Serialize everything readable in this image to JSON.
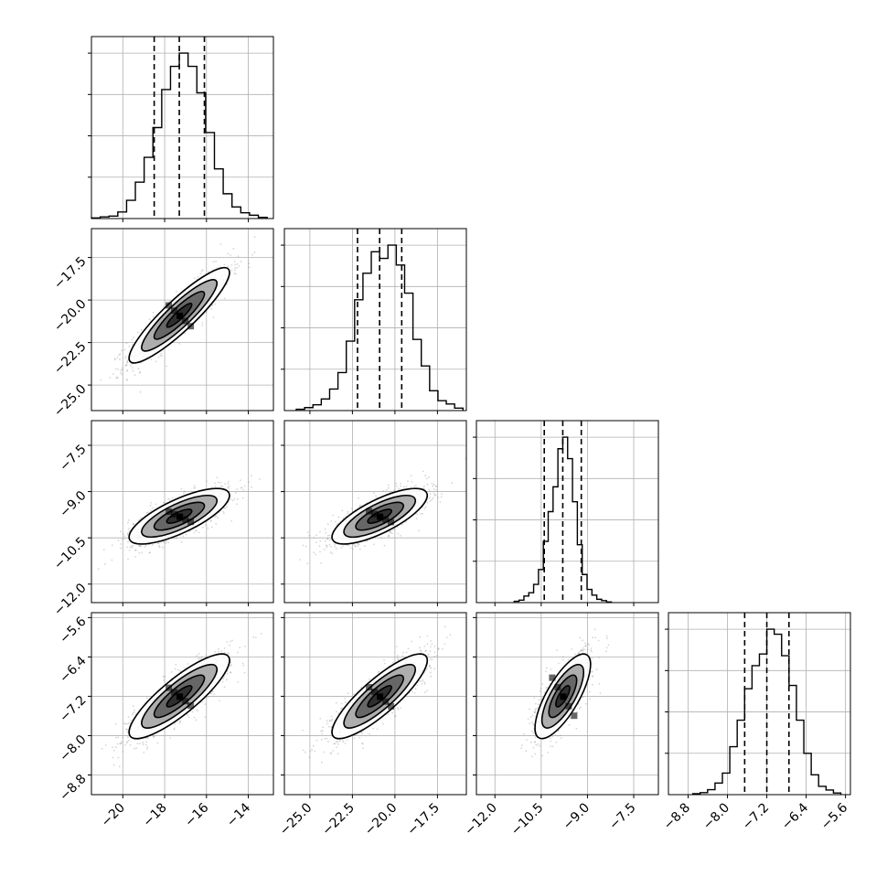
{
  "chart_data": {
    "type": "corner",
    "parameters": [
      {
        "mean": -17.3,
        "std": 1.2,
        "range": [
          -21.5,
          -12.8
        ],
        "ticks": [
          -20,
          -18,
          -16,
          -14
        ],
        "tick_labels": [
          "−20",
          "−18",
          "−16",
          "−14"
        ],
        "quantiles": [
          -18.5,
          -17.3,
          -16.1
        ]
      },
      {
        "mean": -20.9,
        "std": 1.4,
        "range": [
          -26.5,
          -15.8
        ],
        "ticks": [
          -25.0,
          -22.5,
          -20.0,
          -17.5
        ],
        "tick_labels": [
          "−25.0",
          "−22.5",
          "−20.0",
          "−17.5"
        ],
        "quantiles": [
          -22.2,
          -20.9,
          -19.6
        ]
      },
      {
        "mean": -9.8,
        "std": 0.45,
        "range": [
          -12.6,
          -6.7
        ],
        "ticks": [
          -12.0,
          -10.5,
          -9.0,
          -7.5
        ],
        "tick_labels": [
          "−12.0",
          "−10.5",
          "−9.0",
          "−7.5"
        ],
        "quantiles": [
          -10.4,
          -9.8,
          -9.2
        ]
      },
      {
        "mean": -7.2,
        "std": 0.43,
        "range": [
          -9.2,
          -5.5
        ],
        "ticks": [
          -8.8,
          -8.0,
          -7.2,
          -6.4,
          -5.6
        ],
        "tick_labels": [
          "−8.8",
          "−8.0",
          "−7.2",
          "−6.4",
          "−5.6"
        ],
        "quantiles": [
          -7.65,
          -7.2,
          -6.75
        ]
      }
    ],
    "correlations": [
      [
        0,
        1,
        0.9
      ],
      [
        0,
        2,
        0.75
      ],
      [
        1,
        2,
        0.75
      ],
      [
        0,
        3,
        0.85
      ],
      [
        1,
        3,
        0.85
      ],
      [
        2,
        3,
        0.75
      ]
    ],
    "histograms": [
      [
        0.004,
        0.01,
        0.015,
        0.04,
        0.11,
        0.22,
        0.37,
        0.55,
        0.78,
        0.92,
        1.0,
        0.92,
        0.76,
        0.52,
        0.3,
        0.15,
        0.07,
        0.035,
        0.02,
        0.007
      ],
      [
        0.008,
        0.018,
        0.035,
        0.07,
        0.13,
        0.23,
        0.42,
        0.67,
        0.83,
        0.96,
        0.92,
        1.0,
        0.88,
        0.71,
        0.43,
        0.27,
        0.12,
        0.06,
        0.04,
        0.015
      ],
      [
        0.008,
        0.015,
        0.04,
        0.06,
        0.11,
        0.2,
        0.37,
        0.55,
        0.7,
        0.93,
        1.0,
        0.87,
        0.61,
        0.35,
        0.17,
        0.08,
        0.045,
        0.02,
        0.012,
        0.004
      ],
      [
        0.006,
        0.012,
        0.03,
        0.07,
        0.13,
        0.29,
        0.45,
        0.64,
        0.78,
        0.85,
        1.0,
        0.97,
        0.84,
        0.66,
        0.45,
        0.25,
        0.12,
        0.05,
        0.028,
        0.01
      ]
    ],
    "contour_levels_sigma": [
      0.5,
      1.0,
      1.5,
      2.0
    ],
    "scatter_points_per_panel": 1100,
    "grid": true,
    "colors": {
      "points": "#8a8a8a",
      "lines": "#000000"
    }
  }
}
